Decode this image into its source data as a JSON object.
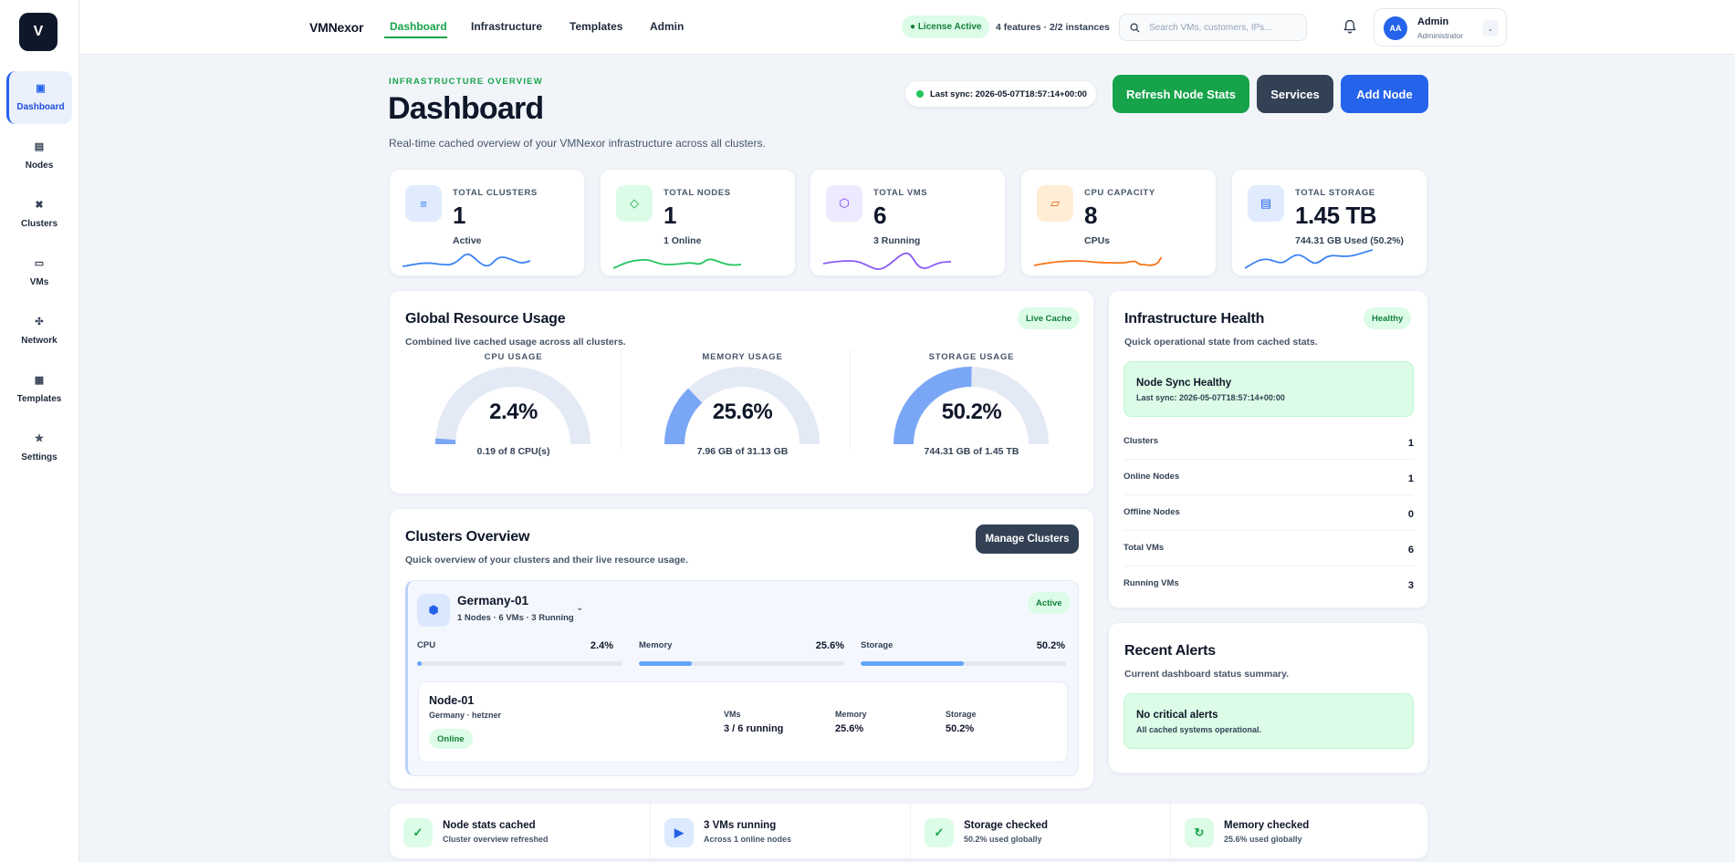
{
  "sidebar": {
    "logo": "V",
    "items": [
      {
        "label": "Dashboard",
        "glyph": "▣"
      },
      {
        "label": "Nodes",
        "glyph": "▤"
      },
      {
        "label": "Clusters",
        "glyph": "✖"
      },
      {
        "label": "VMs",
        "glyph": "▭"
      },
      {
        "label": "Network",
        "glyph": "✣"
      },
      {
        "label": "Templates",
        "glyph": "▦"
      },
      {
        "label": "Settings",
        "glyph": "✮"
      }
    ]
  },
  "topbar": {
    "brand": "VMNexor",
    "nav": [
      "Dashboard",
      "Infrastructure",
      "Templates",
      "Admin"
    ],
    "license": "● License Active",
    "features": "4 features · 2/2 instances",
    "search_placeholder": "Search VMs, customers, IPs...",
    "user": {
      "initials": "AA",
      "name": "Admin",
      "role": "Administrator"
    }
  },
  "header": {
    "eyebrow": "INFRASTRUCTURE OVERVIEW",
    "title": "Dashboard",
    "subtitle": "Real-time cached overview of your VMNexor infrastructure across all clusters.",
    "last_sync": "Last sync: 2026-05-07T18:57:14+00:00",
    "buttons": {
      "refresh": "Refresh Node Stats",
      "services": "Services",
      "add_node": "Add Node"
    }
  },
  "stats": [
    {
      "label": "TOTAL CLUSTERS",
      "value": "1",
      "sub": "Active",
      "glyph": "≡",
      "color": "#3b82f6",
      "bg": "#e0ecfd"
    },
    {
      "label": "TOTAL NODES",
      "value": "1",
      "sub": "1 Online",
      "glyph": "◇",
      "color": "#16a34a",
      "bg": "#dcfce7"
    },
    {
      "label": "TOTAL VMS",
      "value": "6",
      "sub": "3 Running",
      "glyph": "⬡",
      "color": "#7c3aed",
      "bg": "#ede9fe"
    },
    {
      "label": "CPU CAPACITY",
      "value": "8",
      "sub": "CPUs",
      "glyph": "▱",
      "color": "#ea580c",
      "bg": "#ffedd5"
    },
    {
      "label": "TOTAL STORAGE",
      "value": "1.45 TB",
      "sub": "744.31 GB Used (50.2%)",
      "glyph": "▤",
      "color": "#2563eb",
      "bg": "#e0ecfd"
    }
  ],
  "usage": {
    "title": "Global Resource Usage",
    "subtitle": "Combined live cached usage across all clusters.",
    "badge": "Live Cache",
    "gauges": [
      {
        "title": "CPU USAGE",
        "display": "2.4%",
        "percent": 2.4,
        "sub": "0.19 of 8 CPU(s)"
      },
      {
        "title": "MEMORY USAGE",
        "display": "25.6%",
        "percent": 25.6,
        "sub": "7.96 GB of 31.13 GB"
      },
      {
        "title": "STORAGE USAGE",
        "display": "50.2%",
        "percent": 50.2,
        "sub": "744.31 GB of 1.45 TB"
      }
    ]
  },
  "clusters": {
    "title": "Clusters Overview",
    "subtitle": "Quick overview of your clusters and their live resource usage.",
    "manage": "Manage Clusters",
    "cluster": {
      "name": "Germany-01",
      "meta": "1 Nodes · 6 VMs · 3 Running",
      "status": "Active",
      "metrics": [
        {
          "label": "CPU",
          "display": "2.4%",
          "percent": 2.4
        },
        {
          "label": "Memory",
          "display": "25.6%",
          "percent": 25.6
        },
        {
          "label": "Storage",
          "display": "50.2%",
          "percent": 50.2
        }
      ],
      "node": {
        "name": "Node-01",
        "location": "Germany · hetzner",
        "status": "Online",
        "cols": [
          {
            "label": "VMs",
            "value": "3 / 6 running"
          },
          {
            "label": "Memory",
            "value": "25.6%"
          },
          {
            "label": "Storage",
            "value": "50.2%"
          }
        ]
      }
    }
  },
  "health": {
    "title": "Infrastructure Health",
    "badge": "Healthy",
    "subtitle": "Quick operational state from cached stats.",
    "status_title": "Node Sync Healthy",
    "status_sub": "Last sync: 2026-05-07T18:57:14+00:00",
    "rows": [
      {
        "label": "Clusters",
        "value": "1"
      },
      {
        "label": "Online Nodes",
        "value": "1"
      },
      {
        "label": "Offline Nodes",
        "value": "0"
      },
      {
        "label": "Total VMs",
        "value": "6"
      },
      {
        "label": "Running VMs",
        "value": "3"
      }
    ]
  },
  "alerts": {
    "title": "Recent Alerts",
    "subtitle": "Current dashboard status summary.",
    "box_title": "No critical alerts",
    "box_sub": "All cached systems operational."
  },
  "footer": [
    {
      "title": "Node stats cached",
      "sub": "Cluster overview refreshed",
      "glyph": "✓"
    },
    {
      "title": "3 VMs running",
      "sub": "Across 1 online nodes",
      "glyph": "▶"
    },
    {
      "title": "Storage checked",
      "sub": "50.2% used globally",
      "glyph": "✓"
    },
    {
      "title": "Memory checked",
      "sub": "25.6% used globally",
      "glyph": "↻"
    }
  ]
}
